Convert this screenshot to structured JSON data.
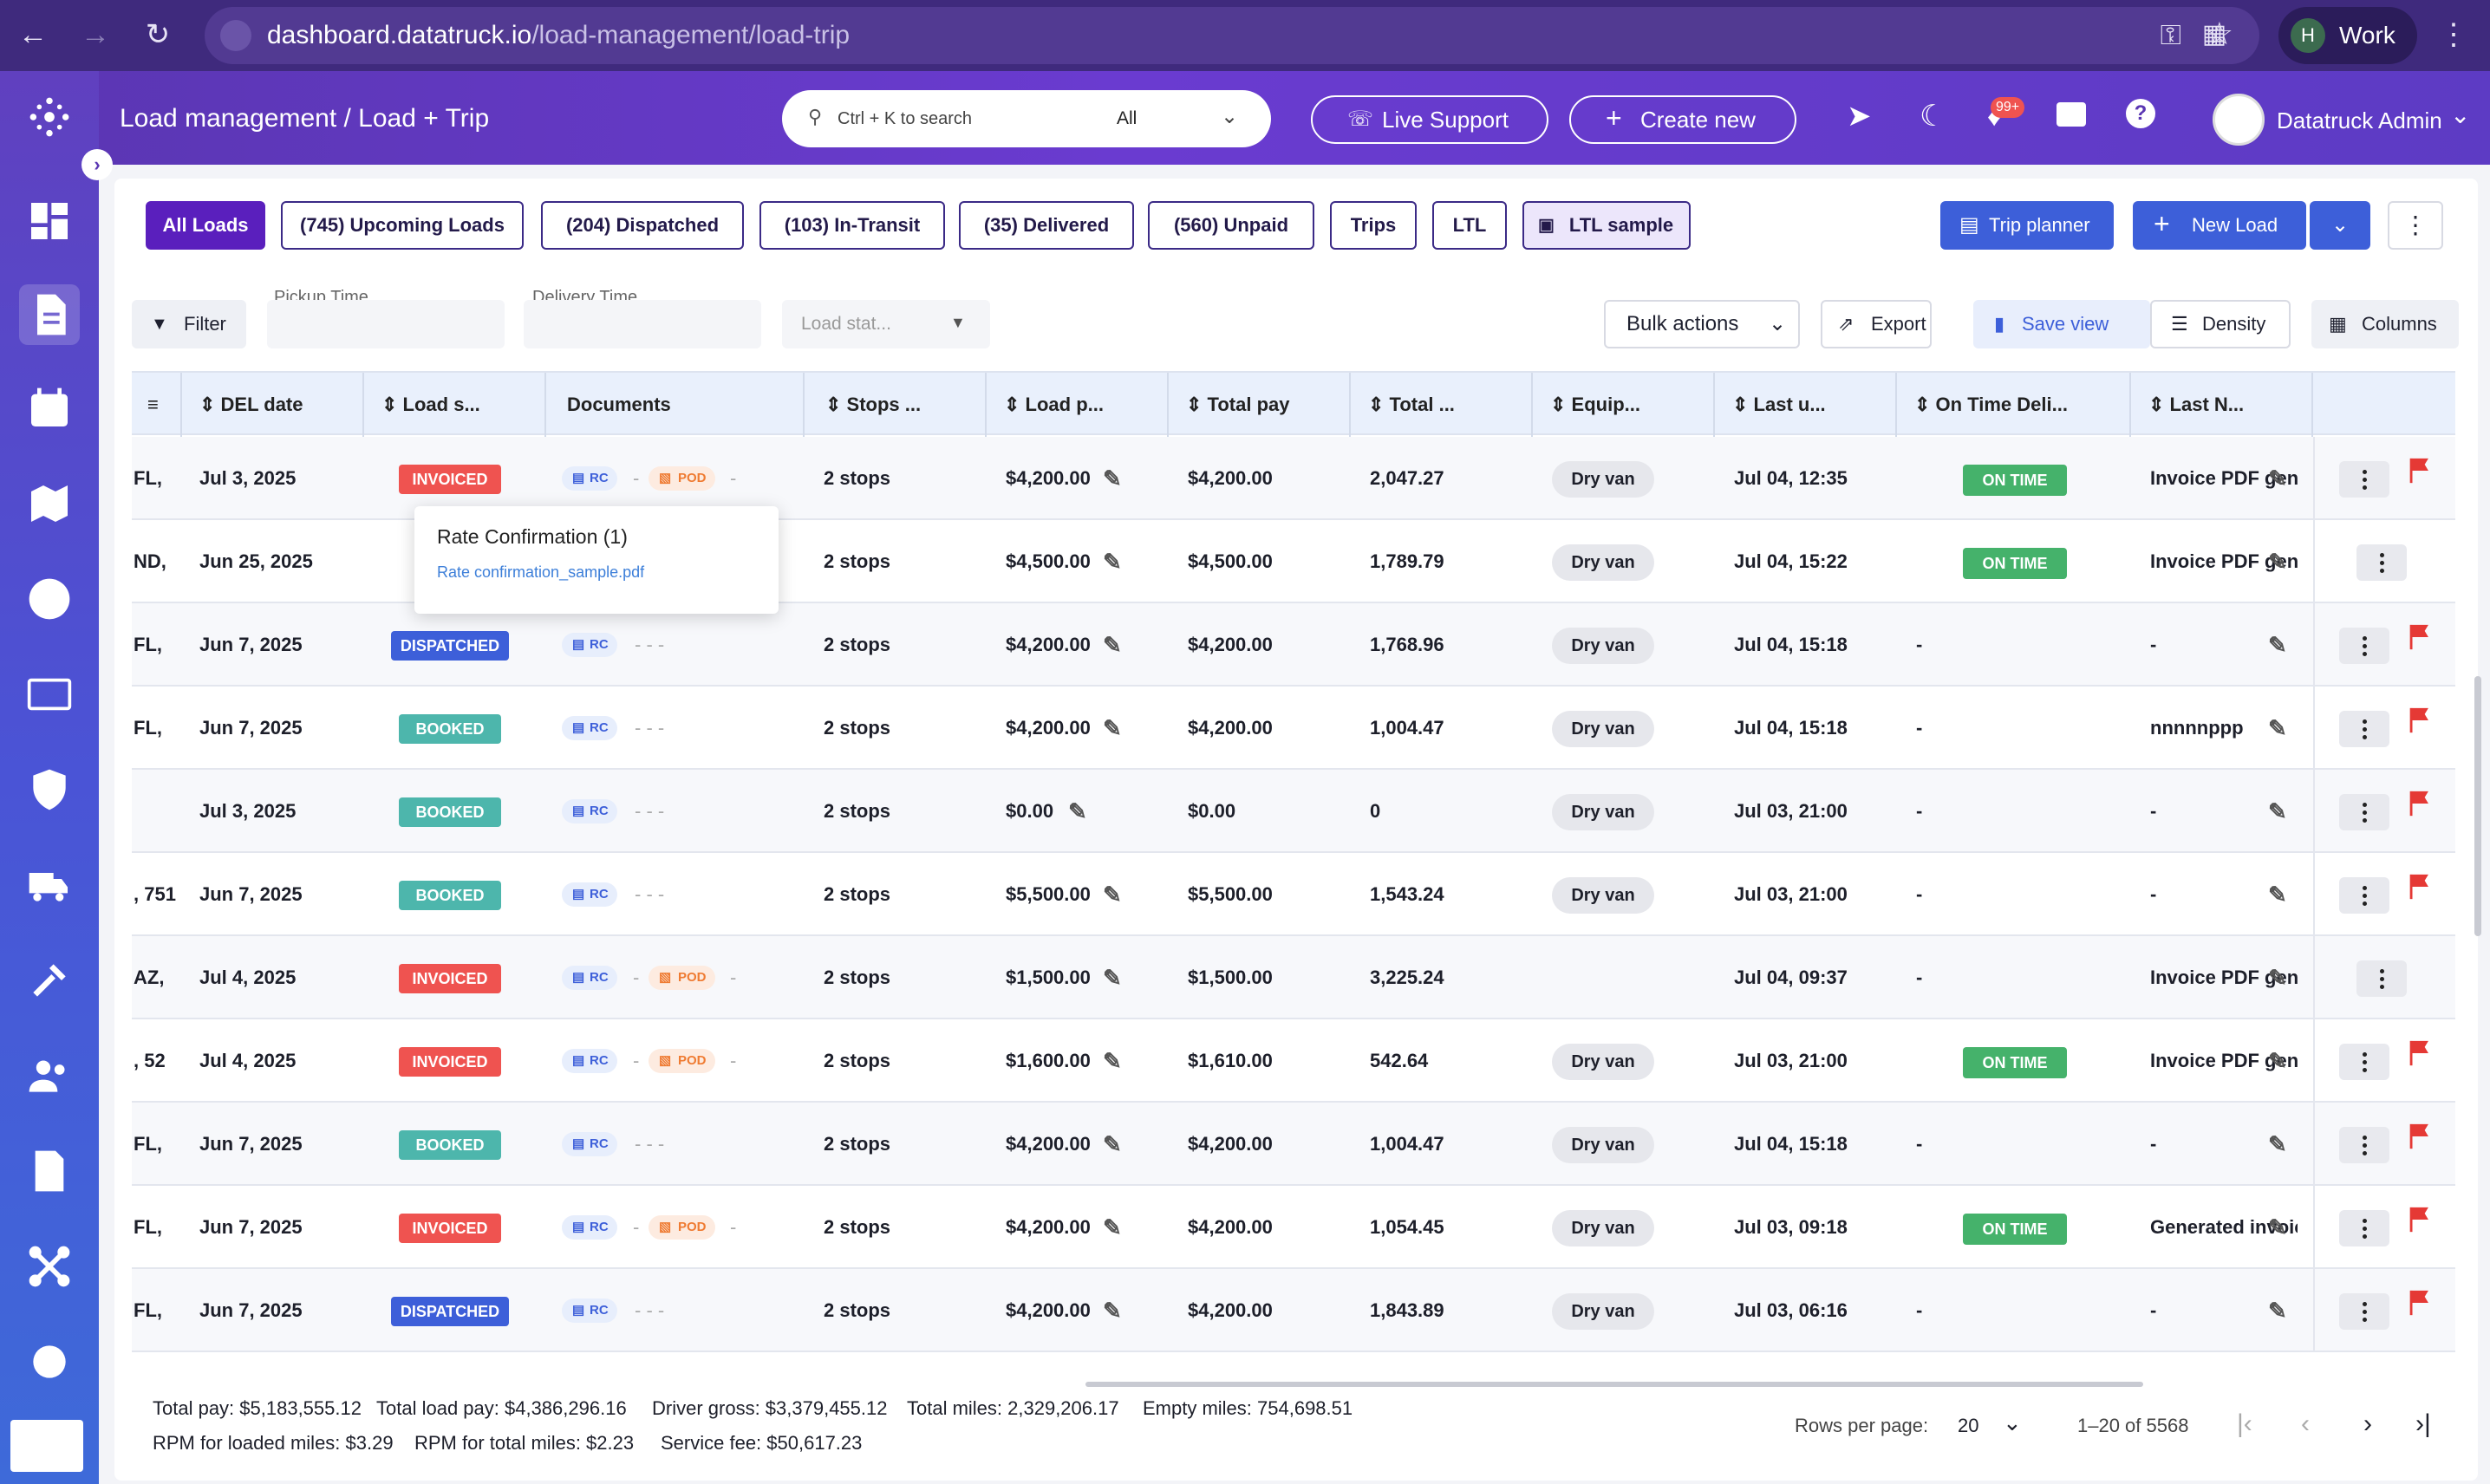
{
  "browser": {
    "url_host": "dashboard.datatruck.io",
    "url_path": "/load-management/load-trip",
    "profile_initial": "H",
    "profile_label": "Work"
  },
  "header": {
    "breadcrumb": "Load management / Load + Trip",
    "search_placeholder": "Ctrl + K to search",
    "search_scope": "All",
    "live_support": "Live Support",
    "create_new": "Create new",
    "notif_badge": "99+",
    "user_name": "Datatruck Admin"
  },
  "tabs": [
    {
      "label": "All Loads",
      "active": true
    },
    {
      "label": "(745)   Upcoming Loads"
    },
    {
      "label": "(204)   Dispatched"
    },
    {
      "label": "(103)   In-Transit"
    },
    {
      "label": "(35)   Delivered"
    },
    {
      "label": "(560)   Unpaid"
    },
    {
      "label": "Trips"
    },
    {
      "label": "LTL"
    },
    {
      "label": "LTL sample"
    }
  ],
  "actions": {
    "trip_planner": "Trip planner",
    "new_load": "New Load"
  },
  "filters": {
    "filter_label": "Filter",
    "pickup_label": "Pickup Time",
    "delivery_label": "Delivery Time",
    "load_status_placeholder": "Load stat...",
    "bulk_actions": "Bulk actions",
    "export": "Export",
    "save_view": "Save view",
    "density": "Density",
    "columns": "Columns"
  },
  "columns": [
    "DEL date",
    "Load s...",
    "Documents",
    "Stops ...",
    "Load p...",
    "Total pay",
    "Total ...",
    "Equip...",
    "Last u...",
    "On Time Deli...",
    "Last N..."
  ],
  "rows": [
    {
      "loc": "FL,",
      "del": "Jul 3, 2025",
      "status": "INVOICED",
      "docs": "rc-pod",
      "stops": "2 stops",
      "load_pay": "$4,200.00",
      "total_pay": "$4,200.00",
      "miles": "2,047.27",
      "equip": "Dry van",
      "last_upd": "Jul 04, 12:35",
      "ontime": "ON TIME",
      "last_note": "Invoice PDF gene",
      "flag": true
    },
    {
      "loc": "ND,",
      "del": "Jun 25, 2025",
      "status": "",
      "docs": "",
      "stops": "2 stops",
      "load_pay": "$4,500.00",
      "total_pay": "$4,500.00",
      "miles": "1,789.79",
      "equip": "Dry van",
      "last_upd": "Jul 04, 15:22",
      "ontime": "ON TIME",
      "last_note": "Invoice PDF gene",
      "flag": false
    },
    {
      "loc": "FL,",
      "del": "Jun 7, 2025",
      "status": "DISPATCHED",
      "docs": "rc",
      "stops": "2 stops",
      "load_pay": "$4,200.00",
      "total_pay": "$4,200.00",
      "miles": "1,768.96",
      "equip": "Dry van",
      "last_upd": "Jul 04, 15:18",
      "ontime": "-",
      "last_note": "-",
      "flag": true
    },
    {
      "loc": "FL,",
      "del": "Jun 7, 2025",
      "status": "BOOKED",
      "docs": "rc",
      "stops": "2 stops",
      "load_pay": "$4,200.00",
      "total_pay": "$4,200.00",
      "miles": "1,004.47",
      "equip": "Dry van",
      "last_upd": "Jul 04, 15:18",
      "ontime": "-",
      "last_note": "nnnnnppp",
      "flag": true
    },
    {
      "loc": "",
      "del": "Jul 3, 2025",
      "status": "BOOKED",
      "docs": "rc",
      "stops": "2 stops",
      "load_pay": "$0.00",
      "total_pay": "$0.00",
      "miles": "0",
      "equip": "Dry van",
      "last_upd": "Jul 03, 21:00",
      "ontime": "-",
      "last_note": "-",
      "flag": true
    },
    {
      "loc": ", 751",
      "del": "Jun 7, 2025",
      "status": "BOOKED",
      "docs": "rc",
      "stops": "2 stops",
      "load_pay": "$5,500.00",
      "total_pay": "$5,500.00",
      "miles": "1,543.24",
      "equip": "Dry van",
      "last_upd": "Jul 03, 21:00",
      "ontime": "-",
      "last_note": "-",
      "flag": true
    },
    {
      "loc": "AZ,",
      "del": "Jul 4, 2025",
      "status": "INVOICED",
      "docs": "rc-pod",
      "stops": "2 stops",
      "load_pay": "$1,500.00",
      "total_pay": "$1,500.00",
      "miles": "3,225.24",
      "equip": "",
      "last_upd": "Jul 04, 09:37",
      "ontime": "-",
      "last_note": "Invoice PDF gene",
      "flag": false
    },
    {
      "loc": ", 52",
      "del": "Jul 4, 2025",
      "status": "INVOICED",
      "docs": "rc-pod",
      "stops": "2 stops",
      "load_pay": "$1,600.00",
      "total_pay": "$1,610.00",
      "miles": "542.64",
      "equip": "Dry van",
      "last_upd": "Jul 03, 21:00",
      "ontime": "ON TIME",
      "last_note": "Invoice PDF gene",
      "flag": true
    },
    {
      "loc": "FL,",
      "del": "Jun 7, 2025",
      "status": "BOOKED",
      "docs": "rc",
      "stops": "2 stops",
      "load_pay": "$4,200.00",
      "total_pay": "$4,200.00",
      "miles": "1,004.47",
      "equip": "Dry van",
      "last_upd": "Jul 04, 15:18",
      "ontime": "-",
      "last_note": "-",
      "flag": true
    },
    {
      "loc": "FL,",
      "del": "Jun 7, 2025",
      "status": "INVOICED",
      "docs": "rc-pod",
      "stops": "2 stops",
      "load_pay": "$4,200.00",
      "total_pay": "$4,200.00",
      "miles": "1,054.45",
      "equip": "Dry van",
      "last_upd": "Jul 03, 09:18",
      "ontime": "ON TIME",
      "last_note": "Generated invoic",
      "flag": true
    },
    {
      "loc": "FL,",
      "del": "Jun 7, 2025",
      "status": "DISPATCHED",
      "docs": "rc",
      "stops": "2 stops",
      "load_pay": "$4,200.00",
      "total_pay": "$4,200.00",
      "miles": "1,843.89",
      "equip": "Dry van",
      "last_upd": "Jul 03, 06:16",
      "ontime": "-",
      "last_note": "-",
      "flag": true
    }
  ],
  "doc_labels": {
    "rc": "RC",
    "pod": "POD"
  },
  "popup": {
    "title": "Rate Confirmation (1)",
    "file": "Rate confirmation_sample.pdf"
  },
  "footer": {
    "total_pay": "Total pay: $5,183,555.12",
    "total_load_pay": "Total load pay: $4,386,296.16",
    "driver_gross": "Driver gross: $3,379,455.12",
    "total_miles": "Total miles: 2,329,206.17",
    "empty_miles": "Empty miles: 754,698.51",
    "rpm_loaded": "RPM for loaded miles: $3.29",
    "rpm_total": "RPM for total miles: $2.23",
    "service_fee": "Service fee: $50,617.23",
    "rows_per_page_label": "Rows per page:",
    "rows_per_page": "20",
    "range": "1–20 of 5568"
  },
  "colors": {
    "invoiced": "#ef5350",
    "dispatched": "#3d5fd9",
    "booked": "#4db6ac",
    "ontime": "#45b26b",
    "accent": "#5a2fc2"
  }
}
